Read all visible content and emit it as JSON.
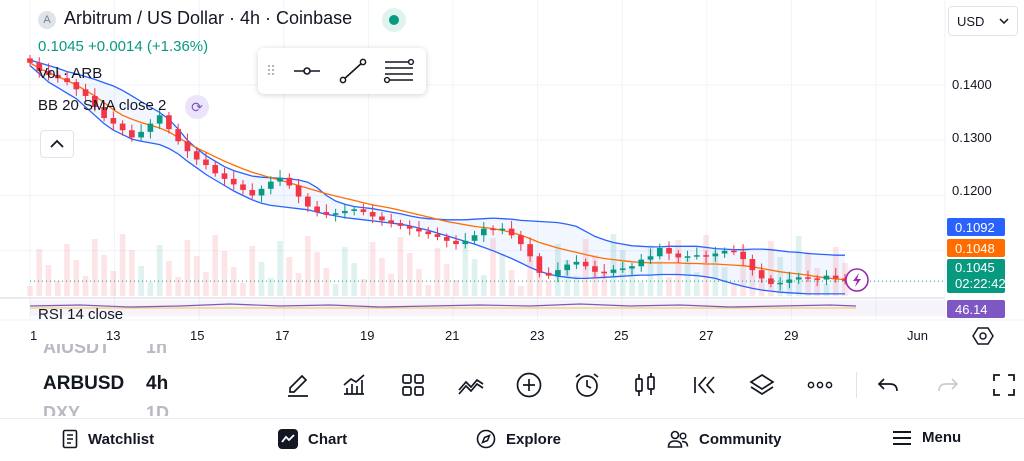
{
  "header": {
    "symbol_logo": "A",
    "title": "Arbitrum / US Dollar · 4h · Coinbase",
    "price_line": "0.1045 +0.0014 (+1.36%)",
    "currency": "USD"
  },
  "legends": {
    "volume": "Vol · ARB",
    "bollinger": "BB 20 SMA close 2",
    "rsi": "RSI 14 close"
  },
  "price_axis": {
    "labels": [
      "0.1400",
      "0.1300",
      "0.1200"
    ],
    "tags": {
      "upper_band": "0.1092",
      "basis": "0.1048",
      "last_price": "0.1045",
      "countdown": "02:22:42",
      "rsi": "46.14"
    }
  },
  "time_axis": [
    "1",
    "13",
    "15",
    "17",
    "19",
    "21",
    "23",
    "25",
    "27",
    "29",
    "Jun"
  ],
  "symbol_switcher": {
    "previous": "AIUSDT",
    "current": "ARBUSD",
    "next": "DXY",
    "previous_tf": "1h",
    "current_tf": "4h",
    "next_tf": "1D"
  },
  "bottom_nav": {
    "watchlist": "Watchlist",
    "chart": "Chart",
    "explore": "Explore",
    "community": "Community",
    "menu": "Menu"
  },
  "colors": {
    "up": "#089981",
    "down": "#f23645",
    "basis": "#ff6d00",
    "band": "#2962ff",
    "rsi": "#7e57c2"
  },
  "chart_data": {
    "type": "candlestick",
    "title": "Arbitrum / US Dollar · 4h · Coinbase",
    "y_range": [
      0.102,
      0.1445
    ],
    "x_labels": [
      "1",
      "13",
      "15",
      "17",
      "19",
      "21",
      "23",
      "25",
      "27",
      "29",
      "Jun"
    ],
    "closes": [
      0.144,
      0.1425,
      0.1418,
      0.1412,
      0.1405,
      0.1392,
      0.138,
      0.136,
      0.134,
      0.133,
      0.1318,
      0.1305,
      0.1315,
      0.133,
      0.1345,
      0.132,
      0.1298,
      0.128,
      0.1265,
      0.1255,
      0.124,
      0.123,
      0.122,
      0.121,
      0.12,
      0.1212,
      0.1225,
      0.1232,
      0.1218,
      0.1198,
      0.118,
      0.117,
      0.1165,
      0.1168,
      0.1172,
      0.1175,
      0.117,
      0.1162,
      0.1155,
      0.115,
      0.1145,
      0.114,
      0.1135,
      0.113,
      0.1125,
      0.1118,
      0.1112,
      0.1118,
      0.1128,
      0.114,
      0.1138,
      0.114,
      0.1128,
      0.1112,
      0.109,
      0.106,
      0.1055,
      0.1065,
      0.1075,
      0.108,
      0.1072,
      0.1062,
      0.106,
      0.1066,
      0.1068,
      0.1072,
      0.1084,
      0.109,
      0.1105,
      0.1095,
      0.1088,
      0.109,
      0.1092,
      0.109,
      0.1095,
      0.11,
      0.1098,
      0.1085,
      0.1065,
      0.105,
      0.104,
      0.1042,
      0.1048,
      0.1052,
      0.105,
      0.1048,
      0.1055,
      0.105,
      0.1045
    ],
    "bollinger_upper": [
      0.1445,
      0.144,
      0.1435,
      0.143,
      0.1424,
      0.142,
      0.1415,
      0.141,
      0.1404,
      0.1398,
      0.139,
      0.138,
      0.137,
      0.136,
      0.135,
      0.1338,
      0.132,
      0.13,
      0.1285,
      0.1272,
      0.1262,
      0.1252,
      0.1245,
      0.124,
      0.1235,
      0.1233,
      0.1232,
      0.1231,
      0.123,
      0.1228,
      0.1224,
      0.1214,
      0.12,
      0.119,
      0.1184,
      0.118,
      0.1178,
      0.1176,
      0.1173,
      0.117,
      0.1167,
      0.1163,
      0.116,
      0.1158,
      0.1157,
      0.1156,
      0.1156,
      0.1156,
      0.1157,
      0.1158,
      0.1159,
      0.1158,
      0.1157,
      0.1155,
      0.1154,
      0.1153,
      0.1152,
      0.1151,
      0.1148,
      0.1144,
      0.1135,
      0.1126,
      0.112,
      0.1115,
      0.1112,
      0.1109,
      0.1108,
      0.1107,
      0.1107,
      0.1108,
      0.1108,
      0.1108,
      0.1108,
      0.1106,
      0.1104,
      0.1103,
      0.1102,
      0.1102,
      0.1103,
      0.1103,
      0.1102,
      0.11,
      0.1098,
      0.1097,
      0.1095,
      0.1094,
      0.1093,
      0.1092,
      0.1092
    ],
    "bollinger_basis": [
      0.144,
      0.143,
      0.1422,
      0.1415,
      0.1408,
      0.14,
      0.139,
      0.138,
      0.1368,
      0.1355,
      0.1345,
      0.1338,
      0.1332,
      0.1327,
      0.1322,
      0.1315,
      0.1305,
      0.1295,
      0.1286,
      0.1278,
      0.127,
      0.1262,
      0.1255,
      0.1248,
      0.1242,
      0.1237,
      0.1232,
      0.1228,
      0.1223,
      0.1218,
      0.1213,
      0.1208,
      0.1203,
      0.1199,
      0.1195,
      0.1191,
      0.1187,
      0.1183,
      0.118,
      0.1177,
      0.1173,
      0.1169,
      0.1165,
      0.1161,
      0.1157,
      0.1153,
      0.115,
      0.1147,
      0.1144,
      0.1142,
      0.114,
      0.1137,
      0.1133,
      0.1128,
      0.1122,
      0.1115,
      0.111,
      0.1105,
      0.1101,
      0.1097,
      0.1093,
      0.1089,
      0.1086,
      0.1084,
      0.1082,
      0.108,
      0.1079,
      0.1078,
      0.1078,
      0.1078,
      0.1078,
      0.1077,
      0.1077,
      0.1076,
      0.1076,
      0.1075,
      0.1074,
      0.1073,
      0.1071,
      0.1068,
      0.1065,
      0.1062,
      0.106,
      0.1058,
      0.1056,
      0.1053,
      0.1051,
      0.1049,
      0.1048
    ],
    "bollinger_lower": [
      0.1435,
      0.142,
      0.1405,
      0.1395,
      0.1385,
      0.1375,
      0.136,
      0.1345,
      0.133,
      0.1318,
      0.131,
      0.1302,
      0.1298,
      0.1295,
      0.1292,
      0.1285,
      0.1275,
      0.1262,
      0.125,
      0.1238,
      0.1228,
      0.1218,
      0.1208,
      0.12,
      0.1192,
      0.1186,
      0.1182,
      0.118,
      0.1178,
      0.1176,
      0.1174,
      0.117,
      0.1166,
      0.1163,
      0.116,
      0.1158,
      0.1156,
      0.1154,
      0.1152,
      0.115,
      0.1148,
      0.1145,
      0.1141,
      0.1137,
      0.1132,
      0.1127,
      0.1122,
      0.1117,
      0.1112,
      0.1106,
      0.11,
      0.1093,
      0.1086,
      0.1078,
      0.107,
      0.1063,
      0.1058,
      0.1054,
      0.1052,
      0.105,
      0.105,
      0.1051,
      0.1052,
      0.1053,
      0.1054,
      0.1055,
      0.1056,
      0.1056,
      0.1057,
      0.1057,
      0.1057,
      0.1056,
      0.1055,
      0.1053,
      0.105,
      0.1045,
      0.104,
      0.1036,
      0.1032,
      0.1029,
      0.1027,
      0.1025,
      0.1024,
      0.1023,
      0.1022,
      0.1022,
      0.1022,
      0.1022,
      0.1022
    ]
  }
}
